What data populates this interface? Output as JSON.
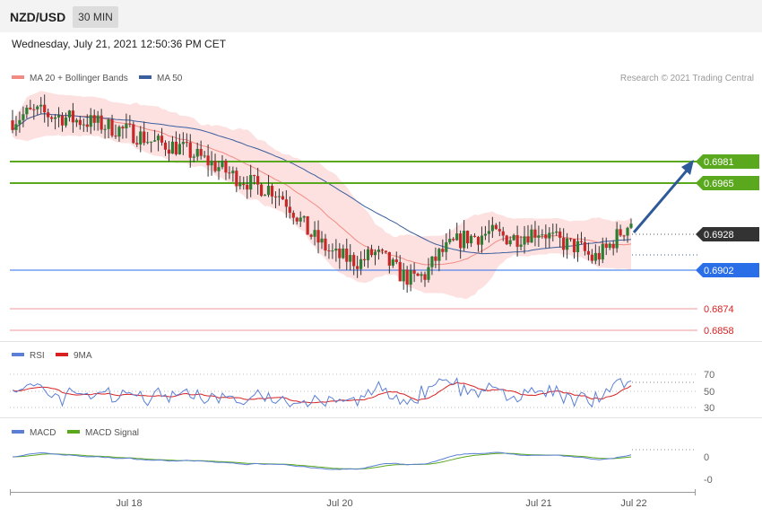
{
  "header": {
    "symbol": "NZD/USD",
    "timeframe": "30 MIN"
  },
  "datetime": "Wednesday, July 21, 2021 12:50:36 PM CET",
  "legend": [
    {
      "label": "MA 20 + Bollinger Bands",
      "color": "#f28b82"
    },
    {
      "label": "MA 50",
      "color": "#3a5f9e"
    }
  ],
  "credit": "Research © 2021 Trading Central",
  "levels": [
    {
      "value": "0.6981",
      "type": "resistance",
      "color": "#5aa81e"
    },
    {
      "value": "0.6965",
      "type": "resistance",
      "color": "#5aa81e"
    },
    {
      "value": "0.6928",
      "type": "current",
      "color": "#333333"
    },
    {
      "value": "0.6902",
      "type": "pivot",
      "color": "#2a6ee8"
    },
    {
      "value": "0.6874",
      "type": "support",
      "color": "#d92020"
    },
    {
      "value": "0.6858",
      "type": "support",
      "color": "#d92020"
    }
  ],
  "rsi_panel": {
    "legend": [
      {
        "label": "RSI",
        "color": "#5b7fd6"
      },
      {
        "label": "9MA",
        "color": "#d92020"
      }
    ],
    "ticks": [
      "70",
      "50",
      "30"
    ]
  },
  "macd_panel": {
    "legend": [
      {
        "label": "MACD",
        "color": "#5b7fd6"
      },
      {
        "label": "MACD Signal",
        "color": "#5aa81e"
      }
    ],
    "ticks": [
      "0",
      "-0"
    ]
  },
  "x_labels": [
    "Jul 18",
    "Jul 20",
    "Jul 21",
    "Jul 22"
  ],
  "chart_data": {
    "type": "candlestick",
    "title": "NZD/USD",
    "price_range": [
      0.6854,
      0.701
    ],
    "close_path": [
      0.6991,
      0.6995,
      0.6996,
      0.6994,
      0.6993,
      0.6991,
      0.699,
      0.6988,
      0.6986,
      0.6984,
      0.6981,
      0.6977,
      0.6976,
      0.6974,
      0.697,
      0.6966,
      0.6962,
      0.6957,
      0.6954,
      0.695,
      0.6949,
      0.6943,
      0.6933,
      0.6921,
      0.6914,
      0.6907,
      0.6905,
      0.6903,
      0.6909,
      0.6904,
      0.6896,
      0.6892,
      0.6895,
      0.6907,
      0.6913,
      0.6918,
      0.6919,
      0.6921,
      0.6919,
      0.6918,
      0.6921,
      0.6923,
      0.6917,
      0.6914,
      0.6912,
      0.6905,
      0.691,
      0.692,
      0.6928
    ],
    "resistance": [
      0.6981,
      0.6965
    ],
    "pivot": 0.6902,
    "support": [
      0.6874,
      0.6858
    ],
    "last_price": 0.6928,
    "target_direction": "up"
  }
}
